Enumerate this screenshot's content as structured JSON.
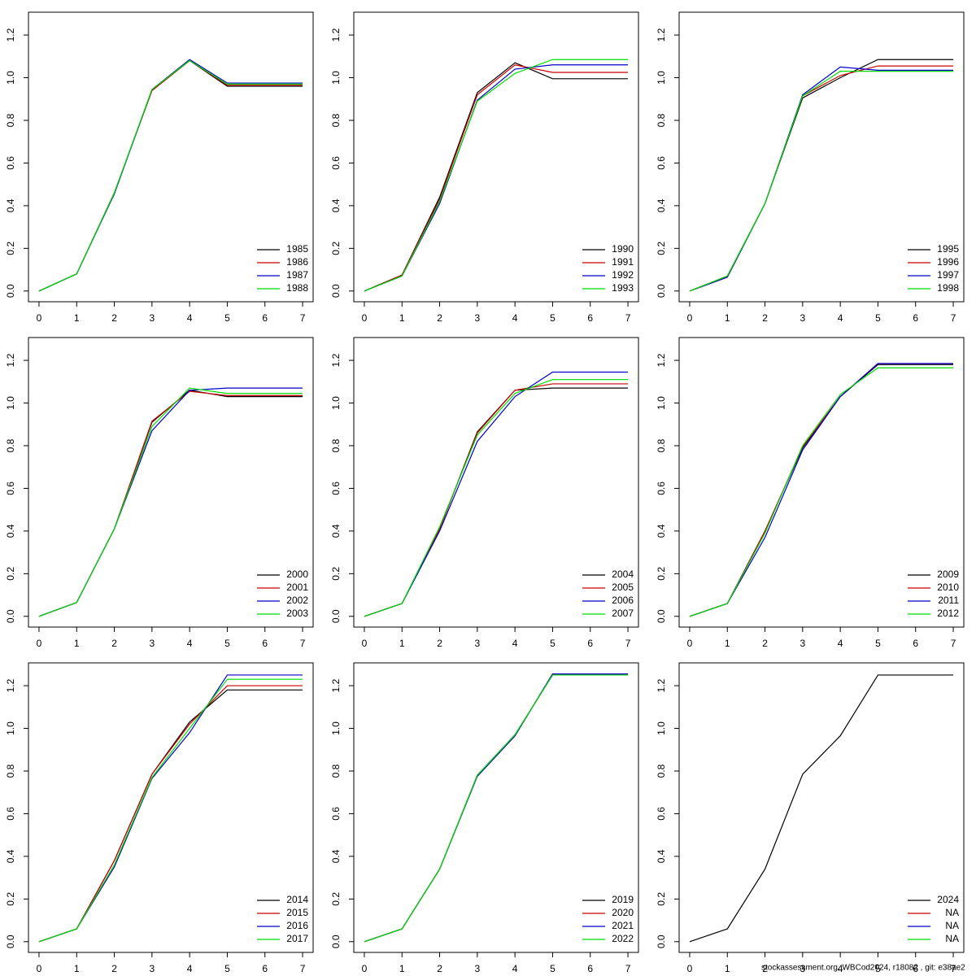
{
  "chart_data": [
    {
      "type": "line",
      "x": [
        0,
        1,
        2,
        3,
        4,
        5,
        6,
        7
      ],
      "xlim": [
        -0.28,
        7.28
      ],
      "ylim": [
        -0.0503,
        1.307
      ],
      "xticks": [
        0,
        1,
        2,
        3,
        4,
        5,
        6,
        7
      ],
      "yticks": [
        {
          "value": 0,
          "label": "0.0"
        },
        {
          "value": 0.2,
          "label": "0.2"
        },
        {
          "value": 0.4,
          "label": "0.4"
        },
        {
          "value": 0.6,
          "label": "0.6"
        },
        {
          "value": 0.8,
          "label": "0.8"
        },
        {
          "value": 1,
          "label": "1.0"
        },
        {
          "value": 1.2,
          "label": "1.2"
        }
      ],
      "legend": "bottomright",
      "series": [
        {
          "name": "1985",
          "color": "#000000",
          "values": [
            0,
            0.08,
            0.46,
            0.94,
            1.08,
            0.96,
            0.96,
            0.96
          ]
        },
        {
          "name": "1986",
          "color": "#cc0000",
          "values": [
            0,
            0.08,
            0.46,
            0.94,
            1.08,
            0.965,
            0.965,
            0.965
          ]
        },
        {
          "name": "1987",
          "color": "#0000cc",
          "values": [
            0,
            0.08,
            0.455,
            0.945,
            1.085,
            0.975,
            0.975,
            0.975
          ]
        },
        {
          "name": "1988",
          "color": "#00dd00",
          "values": [
            0,
            0.08,
            0.46,
            0.945,
            1.08,
            0.97,
            0.97,
            0.97
          ]
        }
      ]
    },
    {
      "type": "line",
      "x": [
        0,
        1,
        2,
        3,
        4,
        5,
        6,
        7
      ],
      "xlim": [
        -0.28,
        7.28
      ],
      "ylim": [
        -0.0503,
        1.307
      ],
      "xticks": [
        0,
        1,
        2,
        3,
        4,
        5,
        6,
        7
      ],
      "yticks": [
        {
          "value": 0,
          "label": "0.0"
        },
        {
          "value": 0.2,
          "label": "0.2"
        },
        {
          "value": 0.4,
          "label": "0.4"
        },
        {
          "value": 0.6,
          "label": "0.6"
        },
        {
          "value": 0.8,
          "label": "0.8"
        },
        {
          "value": 1,
          "label": "1.0"
        },
        {
          "value": 1.2,
          "label": "1.2"
        }
      ],
      "legend": "bottomright",
      "series": [
        {
          "name": "1990",
          "color": "#000000",
          "values": [
            0,
            0.075,
            0.44,
            0.93,
            1.07,
            0.995,
            0.995,
            0.995
          ]
        },
        {
          "name": "1991",
          "color": "#cc0000",
          "values": [
            0,
            0.075,
            0.43,
            0.92,
            1.06,
            1.025,
            1.025,
            1.025
          ]
        },
        {
          "name": "1992",
          "color": "#0000cc",
          "values": [
            0,
            0.07,
            0.41,
            0.895,
            1.04,
            1.06,
            1.06,
            1.06
          ]
        },
        {
          "name": "1993",
          "color": "#00dd00",
          "values": [
            0,
            0.07,
            0.42,
            0.89,
            1.02,
            1.085,
            1.085,
            1.085
          ]
        }
      ]
    },
    {
      "type": "line",
      "x": [
        0,
        1,
        2,
        3,
        4,
        5,
        6,
        7
      ],
      "xlim": [
        -0.28,
        7.28
      ],
      "ylim": [
        -0.0503,
        1.307
      ],
      "xticks": [
        0,
        1,
        2,
        3,
        4,
        5,
        6,
        7
      ],
      "yticks": [
        {
          "value": 0,
          "label": "0.0"
        },
        {
          "value": 0.2,
          "label": "0.2"
        },
        {
          "value": 0.4,
          "label": "0.4"
        },
        {
          "value": 0.6,
          "label": "0.6"
        },
        {
          "value": 0.8,
          "label": "0.8"
        },
        {
          "value": 1,
          "label": "1.0"
        },
        {
          "value": 1.2,
          "label": "1.2"
        }
      ],
      "legend": "bottomright",
      "series": [
        {
          "name": "1995",
          "color": "#000000",
          "values": [
            0,
            0.07,
            0.41,
            0.905,
            1.0,
            1.085,
            1.085,
            1.085
          ]
        },
        {
          "name": "1996",
          "color": "#cc0000",
          "values": [
            0,
            0.065,
            0.41,
            0.915,
            1.01,
            1.055,
            1.055,
            1.055
          ]
        },
        {
          "name": "1997",
          "color": "#0000cc",
          "values": [
            0,
            0.065,
            0.41,
            0.92,
            1.05,
            1.035,
            1.035,
            1.035
          ]
        },
        {
          "name": "1998",
          "color": "#00dd00",
          "values": [
            0,
            0.07,
            0.41,
            0.915,
            1.03,
            1.03,
            1.03,
            1.03
          ]
        }
      ]
    },
    {
      "type": "line",
      "x": [
        0,
        1,
        2,
        3,
        4,
        5,
        6,
        7
      ],
      "xlim": [
        -0.28,
        7.28
      ],
      "ylim": [
        -0.0503,
        1.307
      ],
      "xticks": [
        0,
        1,
        2,
        3,
        4,
        5,
        6,
        7
      ],
      "yticks": [
        {
          "value": 0,
          "label": "0.0"
        },
        {
          "value": 0.2,
          "label": "0.2"
        },
        {
          "value": 0.4,
          "label": "0.4"
        },
        {
          "value": 0.6,
          "label": "0.6"
        },
        {
          "value": 0.8,
          "label": "0.8"
        },
        {
          "value": 1,
          "label": "1.0"
        },
        {
          "value": 1.2,
          "label": "1.2"
        }
      ],
      "legend": "bottomright",
      "series": [
        {
          "name": "2000",
          "color": "#000000",
          "values": [
            0,
            0.065,
            0.41,
            0.91,
            1.06,
            1.03,
            1.03,
            1.03
          ]
        },
        {
          "name": "2001",
          "color": "#cc0000",
          "values": [
            0,
            0.065,
            0.41,
            0.915,
            1.055,
            1.035,
            1.035,
            1.035
          ]
        },
        {
          "name": "2002",
          "color": "#0000cc",
          "values": [
            0,
            0.065,
            0.41,
            0.87,
            1.06,
            1.07,
            1.07,
            1.07
          ]
        },
        {
          "name": "2003",
          "color": "#00dd00",
          "values": [
            0,
            0.065,
            0.41,
            0.89,
            1.07,
            1.045,
            1.045,
            1.045
          ]
        }
      ]
    },
    {
      "type": "line",
      "x": [
        0,
        1,
        2,
        3,
        4,
        5,
        6,
        7
      ],
      "xlim": [
        -0.28,
        7.28
      ],
      "ylim": [
        -0.0503,
        1.307
      ],
      "xticks": [
        0,
        1,
        2,
        3,
        4,
        5,
        6,
        7
      ],
      "yticks": [
        {
          "value": 0,
          "label": "0.0"
        },
        {
          "value": 0.2,
          "label": "0.2"
        },
        {
          "value": 0.4,
          "label": "0.4"
        },
        {
          "value": 0.6,
          "label": "0.6"
        },
        {
          "value": 0.8,
          "label": "0.8"
        },
        {
          "value": 1,
          "label": "1.0"
        },
        {
          "value": 1.2,
          "label": "1.2"
        }
      ],
      "legend": "bottomright",
      "series": [
        {
          "name": "2004",
          "color": "#000000",
          "values": [
            0,
            0.06,
            0.41,
            0.865,
            1.06,
            1.07,
            1.07,
            1.07
          ]
        },
        {
          "name": "2005",
          "color": "#cc0000",
          "values": [
            0,
            0.06,
            0.41,
            0.86,
            1.06,
            1.09,
            1.09,
            1.09
          ]
        },
        {
          "name": "2006",
          "color": "#0000cc",
          "values": [
            0,
            0.06,
            0.4,
            0.82,
            1.03,
            1.145,
            1.145,
            1.145
          ]
        },
        {
          "name": "2007",
          "color": "#00dd00",
          "values": [
            0,
            0.06,
            0.42,
            0.85,
            1.045,
            1.11,
            1.11,
            1.11
          ]
        }
      ]
    },
    {
      "type": "line",
      "x": [
        0,
        1,
        2,
        3,
        4,
        5,
        6,
        7
      ],
      "xlim": [
        -0.28,
        7.28
      ],
      "ylim": [
        -0.0503,
        1.307
      ],
      "xticks": [
        0,
        1,
        2,
        3,
        4,
        5,
        6,
        7
      ],
      "yticks": [
        {
          "value": 0,
          "label": "0.0"
        },
        {
          "value": 0.2,
          "label": "0.2"
        },
        {
          "value": 0.4,
          "label": "0.4"
        },
        {
          "value": 0.6,
          "label": "0.6"
        },
        {
          "value": 0.8,
          "label": "0.8"
        },
        {
          "value": 1,
          "label": "1.0"
        },
        {
          "value": 1.2,
          "label": "1.2"
        }
      ],
      "legend": "bottomright",
      "series": [
        {
          "name": "2009",
          "color": "#000000",
          "values": [
            0,
            0.06,
            0.4,
            0.79,
            1.03,
            1.18,
            1.18,
            1.18
          ]
        },
        {
          "name": "2010",
          "color": "#cc0000",
          "values": [
            0,
            0.06,
            0.4,
            0.795,
            1.03,
            1.185,
            1.185,
            1.185
          ]
        },
        {
          "name": "2011",
          "color": "#0000cc",
          "values": [
            0,
            0.06,
            0.37,
            0.78,
            1.03,
            1.185,
            1.185,
            1.185
          ]
        },
        {
          "name": "2012",
          "color": "#00dd00",
          "values": [
            0,
            0.06,
            0.39,
            0.8,
            1.04,
            1.165,
            1.165,
            1.165
          ]
        }
      ]
    },
    {
      "type": "line",
      "x": [
        0,
        1,
        2,
        3,
        4,
        5,
        6,
        7
      ],
      "xlim": [
        -0.28,
        7.28
      ],
      "ylim": [
        -0.0503,
        1.307
      ],
      "xticks": [
        0,
        1,
        2,
        3,
        4,
        5,
        6,
        7
      ],
      "yticks": [
        {
          "value": 0,
          "label": "0.0"
        },
        {
          "value": 0.2,
          "label": "0.2"
        },
        {
          "value": 0.4,
          "label": "0.4"
        },
        {
          "value": 0.6,
          "label": "0.6"
        },
        {
          "value": 0.8,
          "label": "0.8"
        },
        {
          "value": 1,
          "label": "1.0"
        },
        {
          "value": 1.2,
          "label": "1.2"
        }
      ],
      "legend": "bottomright",
      "series": [
        {
          "name": "2014",
          "color": "#000000",
          "values": [
            0,
            0.06,
            0.38,
            0.785,
            1.03,
            1.18,
            1.18,
            1.18
          ]
        },
        {
          "name": "2015",
          "color": "#cc0000",
          "values": [
            0,
            0.06,
            0.38,
            0.785,
            1.02,
            1.2,
            1.2,
            1.2
          ]
        },
        {
          "name": "2016",
          "color": "#0000cc",
          "values": [
            0,
            0.06,
            0.35,
            0.765,
            0.98,
            1.25,
            1.25,
            1.25
          ]
        },
        {
          "name": "2017",
          "color": "#00dd00",
          "values": [
            0,
            0.06,
            0.36,
            0.77,
            1.0,
            1.23,
            1.23,
            1.23
          ]
        }
      ]
    },
    {
      "type": "line",
      "x": [
        0,
        1,
        2,
        3,
        4,
        5,
        6,
        7
      ],
      "xlim": [
        -0.28,
        7.28
      ],
      "ylim": [
        -0.0503,
        1.307
      ],
      "xticks": [
        0,
        1,
        2,
        3,
        4,
        5,
        6,
        7
      ],
      "yticks": [
        {
          "value": 0,
          "label": "0.0"
        },
        {
          "value": 0.2,
          "label": "0.2"
        },
        {
          "value": 0.4,
          "label": "0.4"
        },
        {
          "value": 0.6,
          "label": "0.6"
        },
        {
          "value": 0.8,
          "label": "0.8"
        },
        {
          "value": 1,
          "label": "1.0"
        },
        {
          "value": 1.2,
          "label": "1.2"
        }
      ],
      "legend": "bottomright",
      "series": [
        {
          "name": "2019",
          "color": "#000000",
          "values": [
            0,
            0.06,
            0.34,
            0.78,
            0.97,
            1.25,
            1.25,
            1.25
          ]
        },
        {
          "name": "2020",
          "color": "#cc0000",
          "values": [
            0,
            0.06,
            0.34,
            0.78,
            0.965,
            1.255,
            1.255,
            1.255
          ]
        },
        {
          "name": "2021",
          "color": "#0000cc",
          "values": [
            0,
            0.06,
            0.34,
            0.775,
            0.965,
            1.255,
            1.255,
            1.255
          ]
        },
        {
          "name": "2022",
          "color": "#00dd00",
          "values": [
            0,
            0.06,
            0.34,
            0.78,
            0.97,
            1.25,
            1.25,
            1.25
          ]
        }
      ]
    },
    {
      "type": "line",
      "x": [
        0,
        1,
        2,
        3,
        4,
        5,
        6,
        7
      ],
      "xlim": [
        -0.28,
        7.28
      ],
      "ylim": [
        -0.0503,
        1.307
      ],
      "xticks": [
        0,
        1,
        2,
        3,
        4,
        5,
        6,
        7
      ],
      "yticks": [
        {
          "value": 0,
          "label": "0.0"
        },
        {
          "value": 0.2,
          "label": "0.2"
        },
        {
          "value": 0.4,
          "label": "0.4"
        },
        {
          "value": 0.6,
          "label": "0.6"
        },
        {
          "value": 0.8,
          "label": "0.8"
        },
        {
          "value": 1,
          "label": "1.0"
        },
        {
          "value": 1.2,
          "label": "1.2"
        }
      ],
      "legend": "bottomright",
      "series": [
        {
          "name": "2024",
          "color": "#000000",
          "values": [
            0,
            0.06,
            0.34,
            0.785,
            0.965,
            1.25,
            1.25,
            1.25
          ]
        },
        {
          "name": "NA",
          "color": "#cc0000",
          "values": [
            null,
            null,
            null,
            null,
            null,
            null,
            null,
            null
          ]
        },
        {
          "name": "NA",
          "color": "#0000cc",
          "values": [
            null,
            null,
            null,
            null,
            null,
            null,
            null,
            null
          ]
        },
        {
          "name": "NA",
          "color": "#00dd00",
          "values": [
            null,
            null,
            null,
            null,
            null,
            null,
            null,
            null
          ]
        }
      ]
    }
  ],
  "footer": "stockassessment.org, WBCod2024, r18082 , git: e38ae2"
}
